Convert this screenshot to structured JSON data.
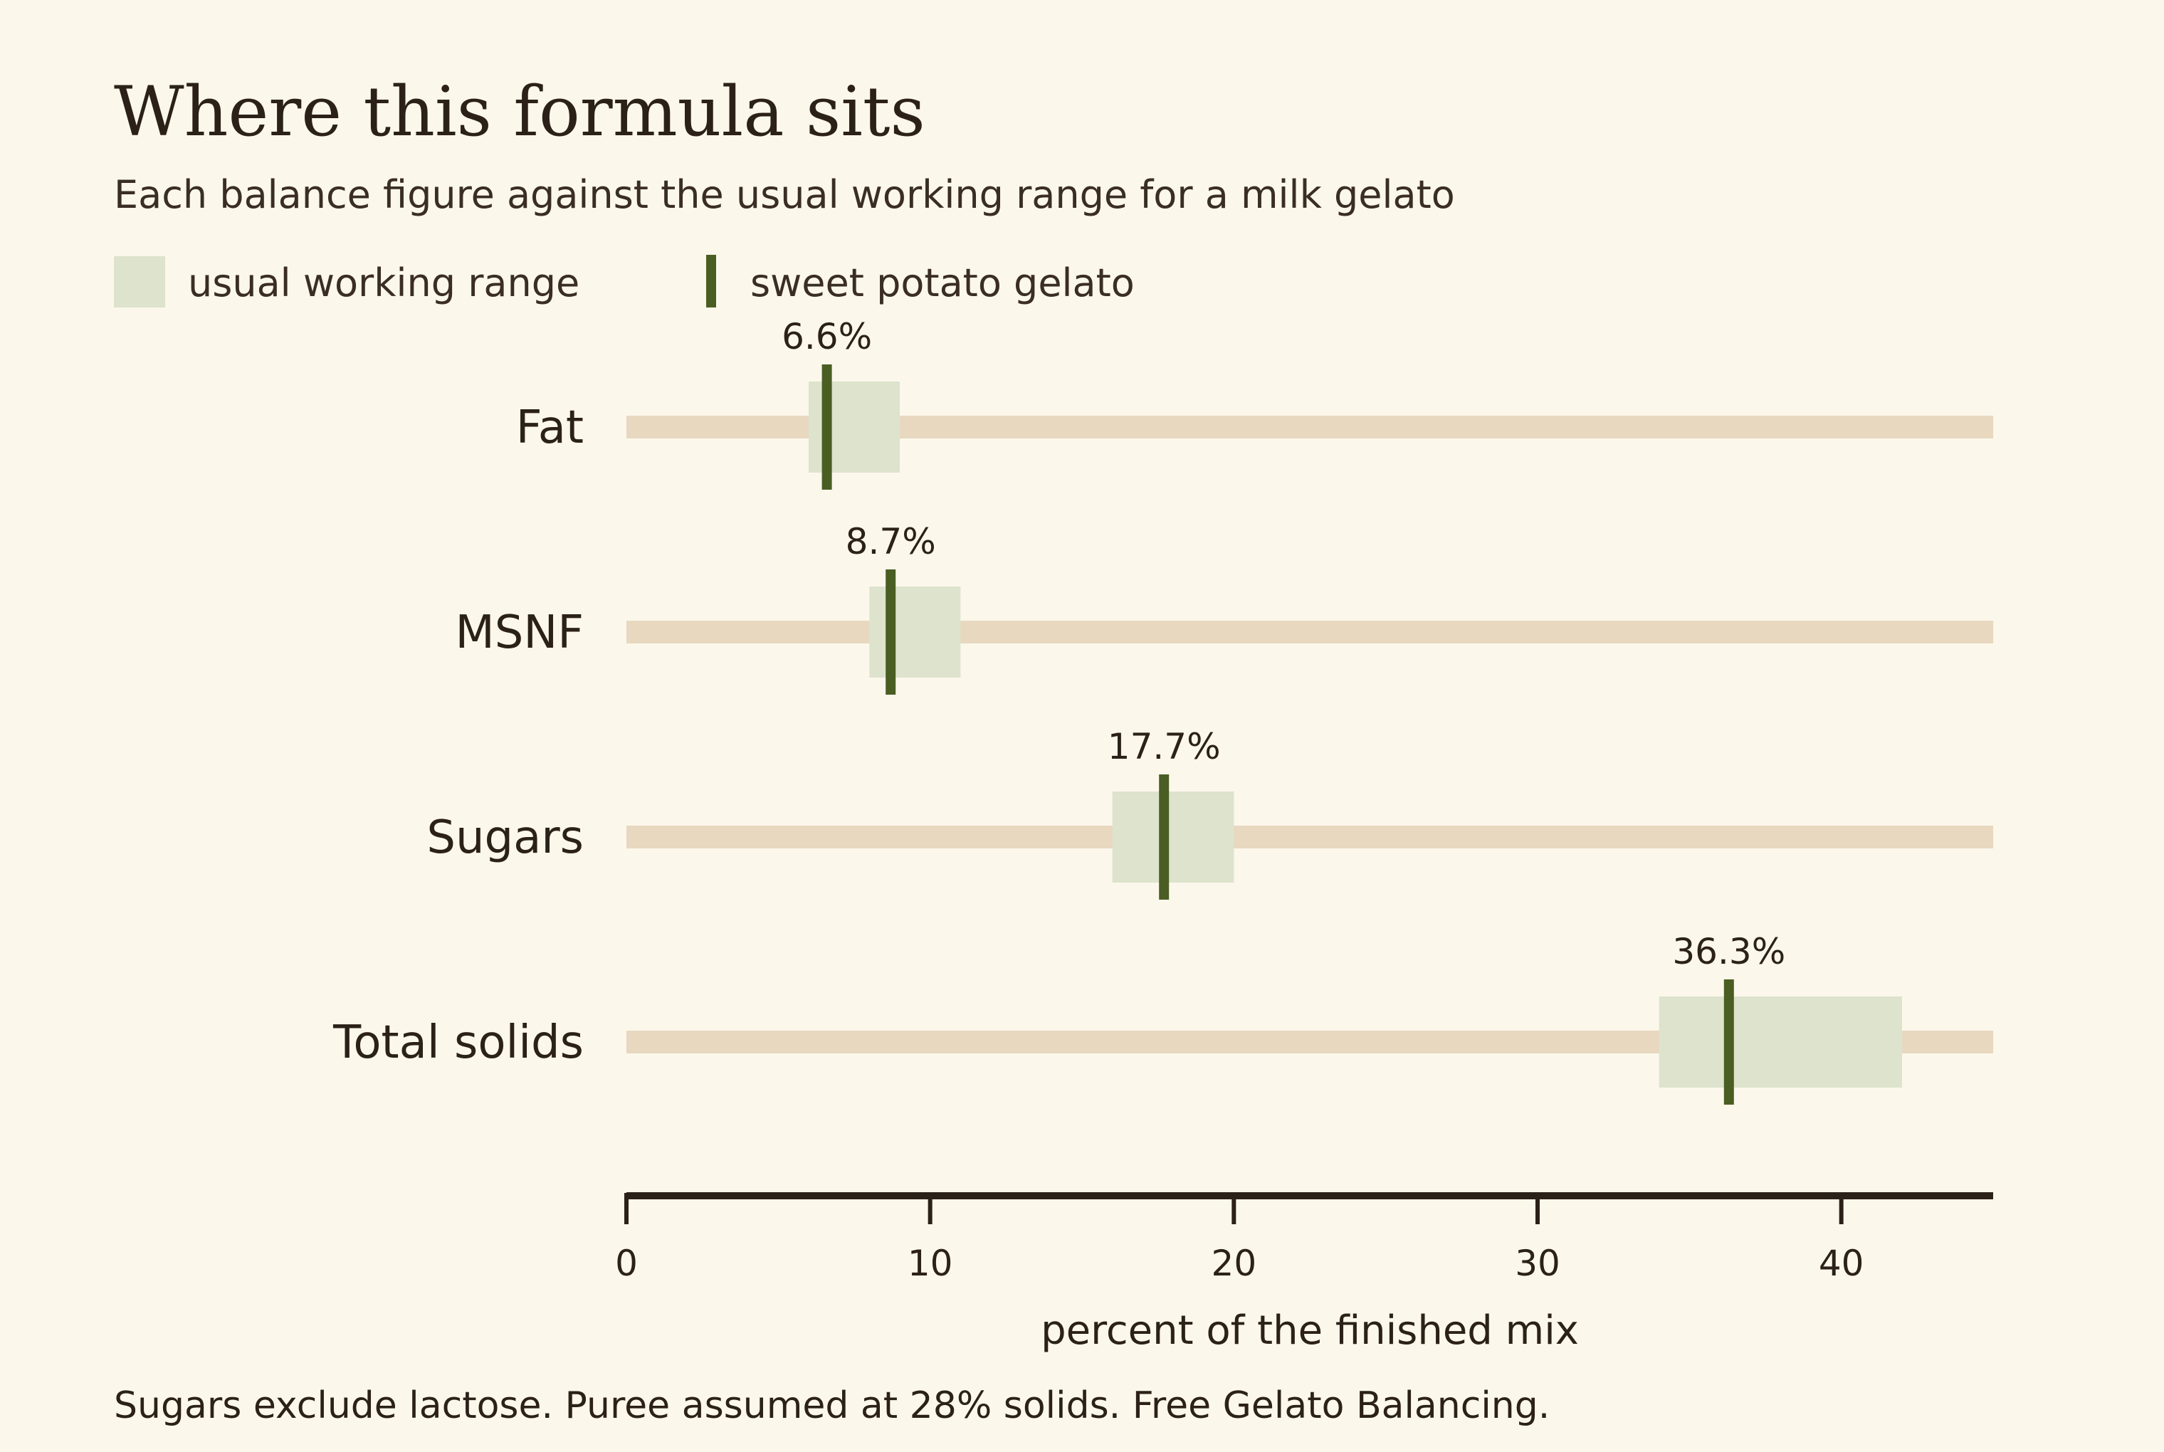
{
  "colors": {
    "background": "#fcf7eb",
    "track": "#e8d8c0",
    "range": "#dde3cc",
    "marker": "#4a5e23",
    "axis": "#2b2118",
    "text": "#2b2118"
  },
  "chart_data": {
    "type": "bullet",
    "title": "Where this formula sits",
    "subtitle": "Each balance figure against the usual working range for a milk gelato",
    "legend": {
      "placement": "top-left",
      "range_label": "usual working range",
      "marker_label": "sweet potato gelato"
    },
    "xlabel": "percent of the finished mix",
    "xlim": [
      0,
      45
    ],
    "xticks": [
      0,
      10,
      20,
      30,
      40
    ],
    "grid": false,
    "categories": [
      "Fat",
      "MSNF",
      "Sugars",
      "Total solids"
    ],
    "ranges": [
      [
        6,
        9
      ],
      [
        8,
        11
      ],
      [
        16,
        20
      ],
      [
        34,
        42
      ]
    ],
    "series": [
      {
        "name": "sweet potato gelato",
        "values": [
          6.6,
          8.7,
          17.7,
          36.3
        ],
        "value_labels": [
          "6.6%",
          "8.7%",
          "17.7%",
          "36.3%"
        ]
      }
    ],
    "footnote": "Sugars exclude lactose. Puree assumed at 28% solids. Free Gelato Balancing."
  }
}
